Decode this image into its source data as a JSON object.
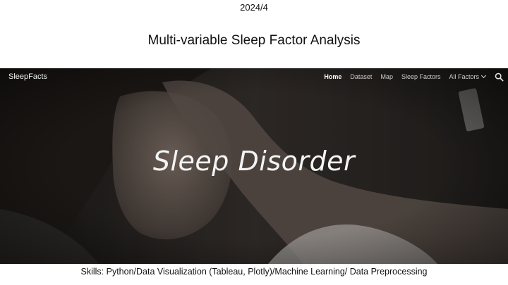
{
  "slide": {
    "date": "2024/4",
    "title": "Multi-variable Sleep Factor Analysis",
    "skills": "Skills: Python/Data Visualization (Tableau, Plotly)/Machine Learning/ Data Preprocessing"
  },
  "site": {
    "brand": "SleepFacts",
    "nav": {
      "home": "Home",
      "dataset": "Dataset",
      "map": "Map",
      "sleep_factors": "Sleep Factors",
      "all_factors": "All Factors"
    },
    "search_icon": "search-icon",
    "dropdown_icon": "chevron-down-icon",
    "hero_heading": "Sleep Disorder"
  },
  "colors": {
    "hero_overlay": "#2a2826",
    "nav_text": "#cfcfcf",
    "heading_text": "#f4f4f4"
  }
}
